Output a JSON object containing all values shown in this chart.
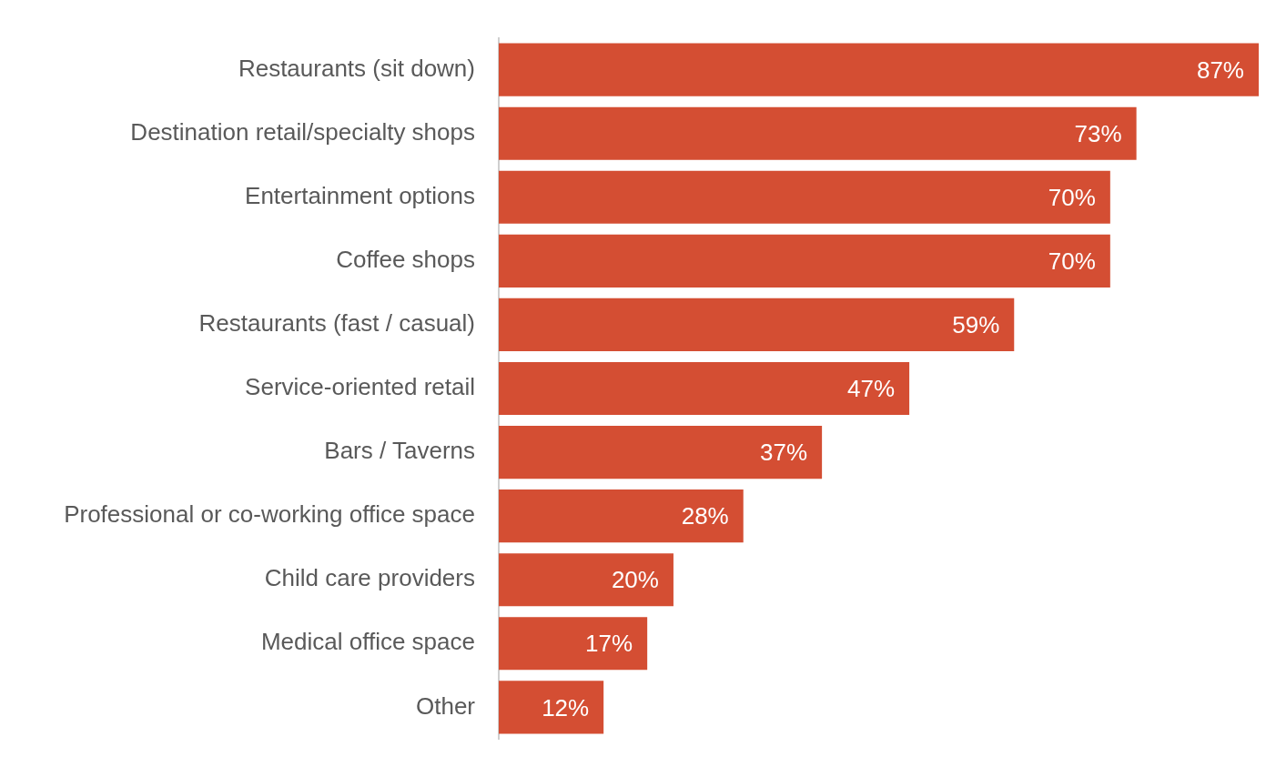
{
  "chart_data": {
    "type": "bar",
    "orientation": "horizontal",
    "categories": [
      "Restaurants (sit down)",
      "Destination retail/specialty shops",
      "Entertainment options",
      "Coffee shops",
      "Restaurants (fast / casual)",
      "Service-oriented retail",
      "Bars / Taverns",
      "Professional or co-working office space",
      "Child care providers",
      "Medical office space",
      "Other"
    ],
    "values": [
      87,
      73,
      70,
      70,
      59,
      47,
      37,
      28,
      20,
      17,
      12
    ],
    "value_labels": [
      "87%",
      "73%",
      "70%",
      "70%",
      "59%",
      "47%",
      "37%",
      "28%",
      "20%",
      "17%",
      "12%"
    ],
    "color": "#d44e33"
  }
}
